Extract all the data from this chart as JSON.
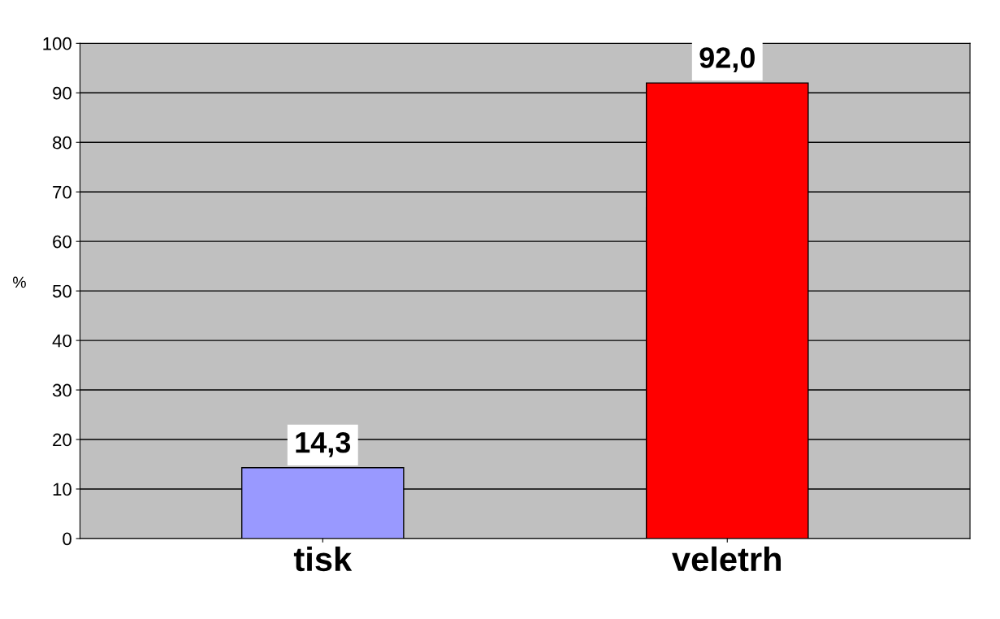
{
  "chart_data": {
    "type": "bar",
    "ylabel": "%",
    "categories": [
      "tisk",
      "veletrh"
    ],
    "values": [
      14.3,
      92.0
    ],
    "colors": [
      "#9999ff",
      "#ff0000"
    ],
    "value_labels": [
      "14,3",
      "92,0"
    ],
    "ylim": [
      0,
      100
    ],
    "yticks": [
      0,
      10,
      20,
      30,
      40,
      50,
      60,
      70,
      80,
      90,
      100
    ],
    "grid": "y"
  }
}
